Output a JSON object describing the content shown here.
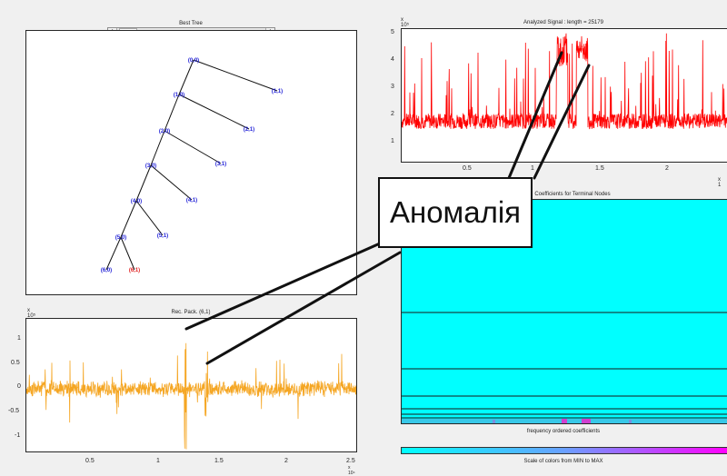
{
  "tree_panel": {
    "title": "Best Tree",
    "scroll_left_arrow": "‹",
    "scroll_right_arrow": "›",
    "nodes": [
      {
        "label": "(0,0)",
        "color": "#1c1cd6"
      },
      {
        "label": "(1,0)",
        "color": "#1c1cd6"
      },
      {
        "label": "(1,1)",
        "color": "#1c1cd6"
      },
      {
        "label": "(2,0)",
        "color": "#1c1cd6"
      },
      {
        "label": "(2,1)",
        "color": "#1c1cd6"
      },
      {
        "label": "(3,0)",
        "color": "#1c1cd6"
      },
      {
        "label": "(3,1)",
        "color": "#1c1cd6"
      },
      {
        "label": "(4,0)",
        "color": "#1c1cd6"
      },
      {
        "label": "(4,1)",
        "color": "#1c1cd6"
      },
      {
        "label": "(5,0)",
        "color": "#1c1cd6"
      },
      {
        "label": "(5,1)",
        "color": "#1c1cd6"
      },
      {
        "label": "(6,0)",
        "color": "#1c1cd6"
      },
      {
        "label": "(6,1)",
        "color": "#e02020"
      }
    ]
  },
  "signal_panel": {
    "title": "Analyzed Signal : length = 25179",
    "exponent": "x 10⁵",
    "x_exponent": "x 1",
    "yticks": [
      "5",
      "4",
      "3",
      "2",
      "1"
    ],
    "xticks": [
      "0.5",
      "1",
      "1.5",
      "2"
    ],
    "line_color": "#ff0000"
  },
  "coef_panel": {
    "title": "Coefficients for Terminal Nodes",
    "xlabel": "frequency ordered coefficients",
    "fill_color": "#00ffff"
  },
  "colorbar_panel": {
    "title": "Scale of colors from MIN to MAX",
    "color_start": "#00ffff",
    "color_end": "#ff00ff"
  },
  "recpack_panel": {
    "title": "Rec. Pack. (6,1)",
    "exponent": "x 10⁵",
    "x_exponent": "x 10⁴",
    "yticks": [
      "1",
      "0.5",
      "0",
      "-0.5",
      "-1"
    ],
    "xticks": [
      "0.5",
      "1",
      "1.5",
      "2",
      "2.5"
    ],
    "line_color": "#f5a623"
  },
  "callout": {
    "text": "Аномалія"
  }
}
